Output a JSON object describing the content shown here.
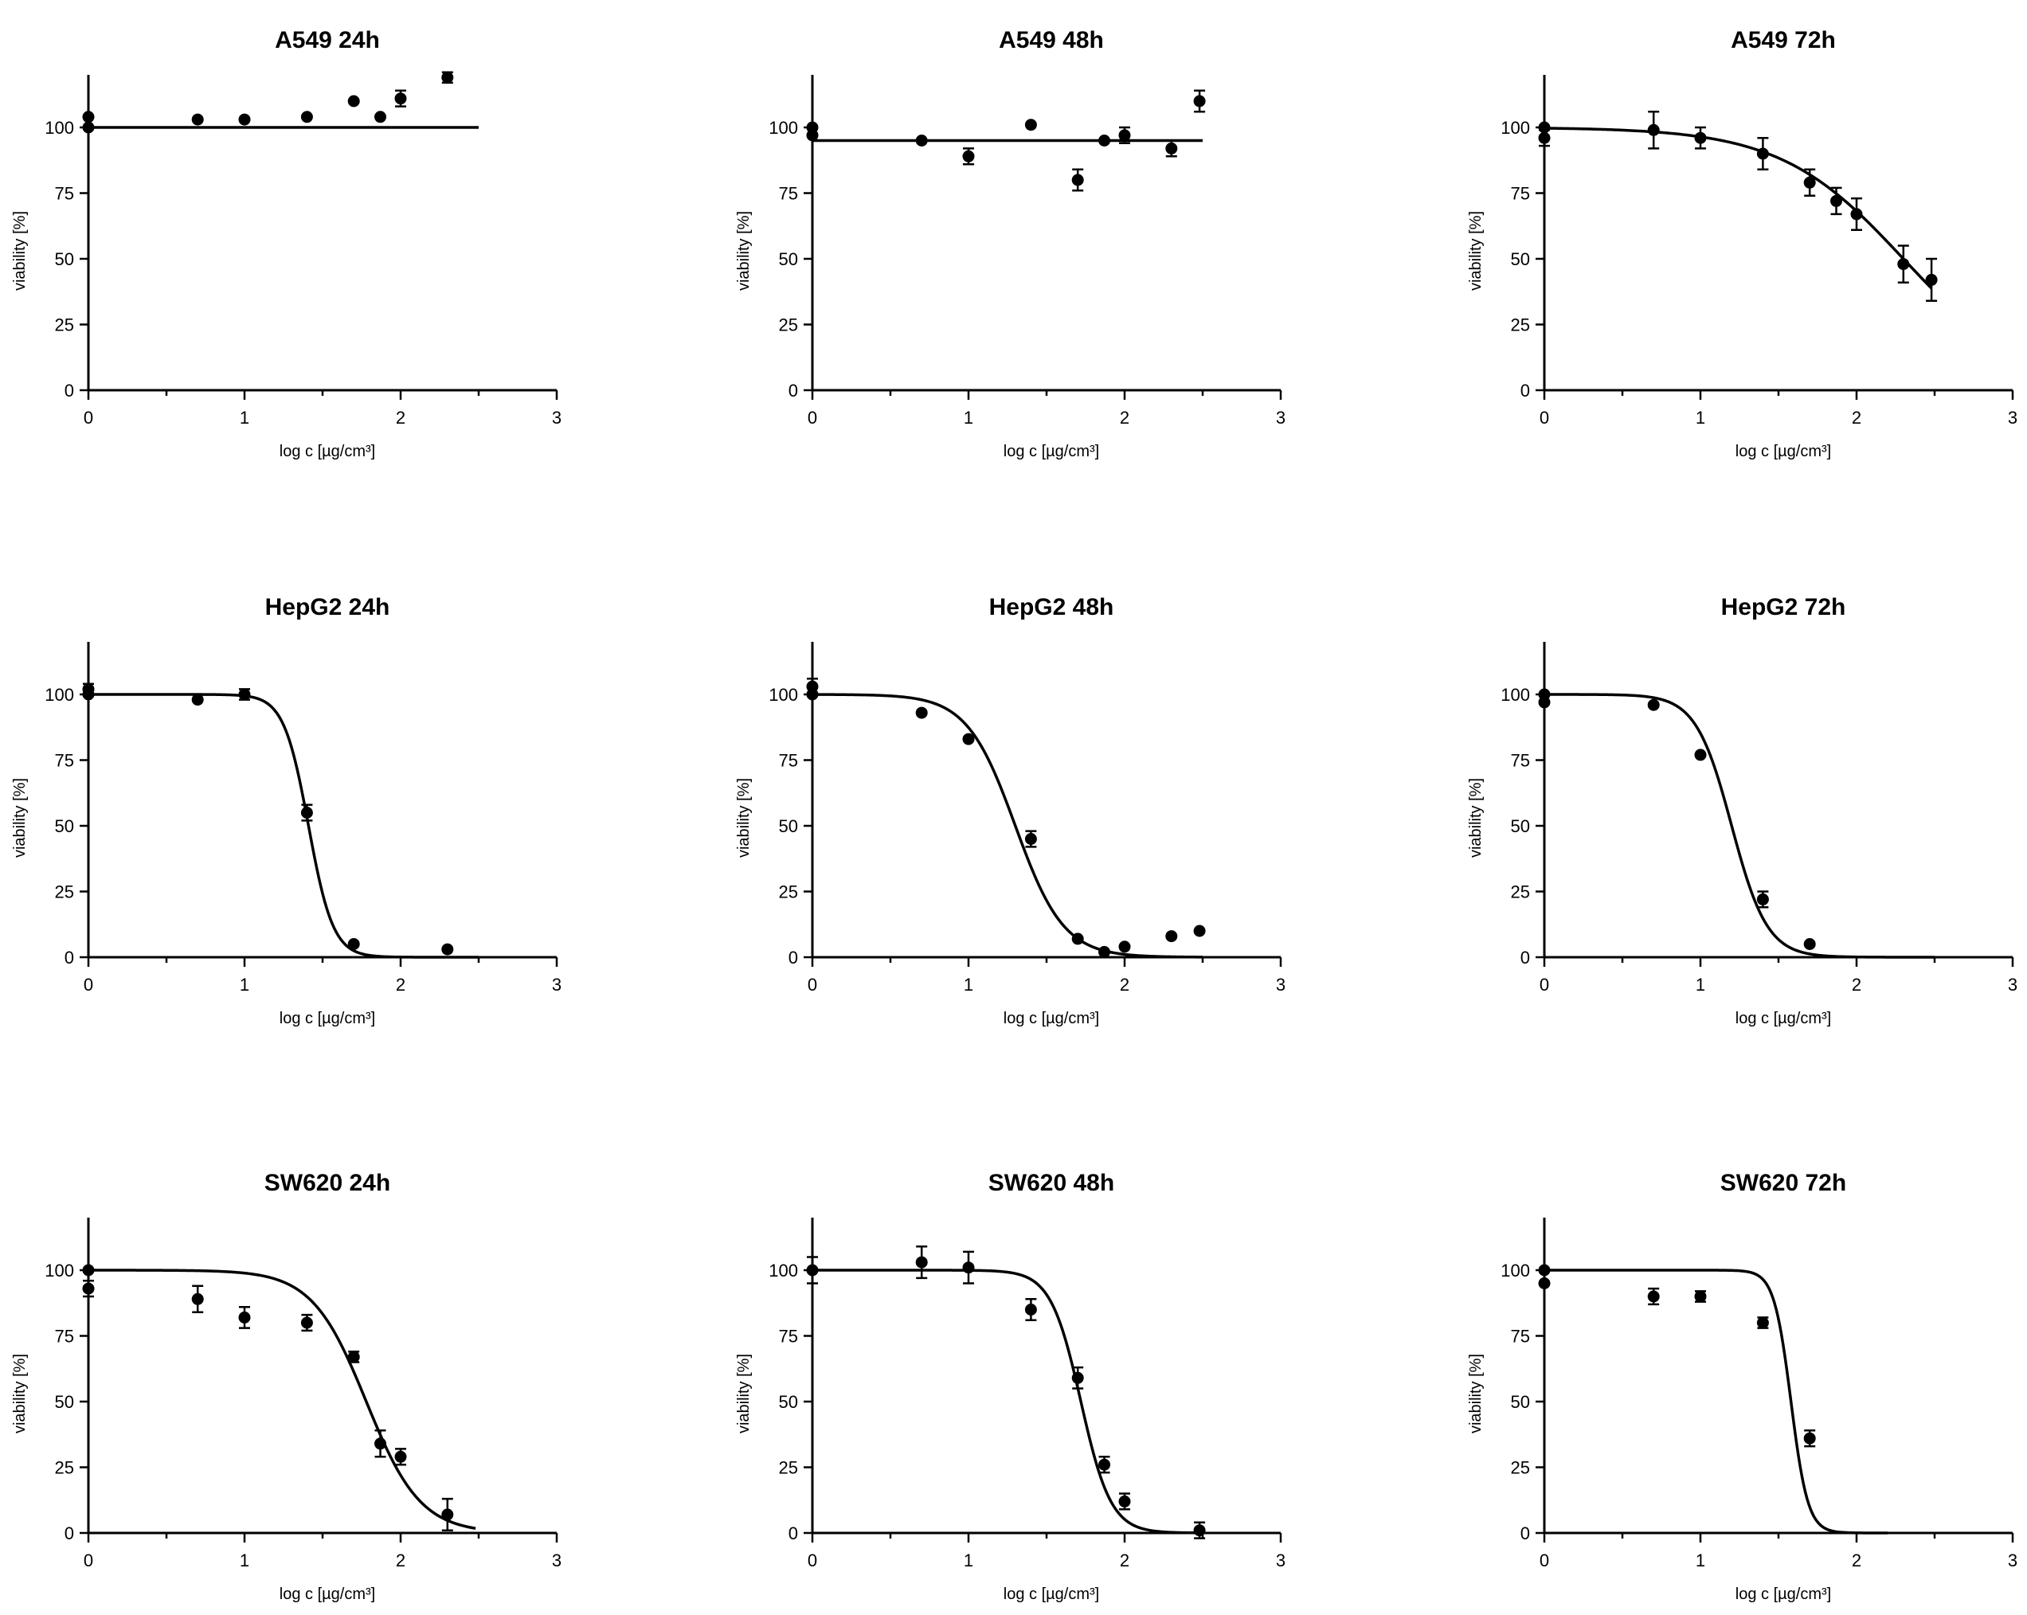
{
  "figure": {
    "background": "#ffffff",
    "ink": "#000000"
  },
  "chart_data": [
    {
      "type": "scatter",
      "title": "A549 24h",
      "xlabel": "log c [µg/cm³]",
      "ylabel": "viability [%]",
      "xlim": [
        0,
        3
      ],
      "ylim": [
        0,
        120
      ],
      "xticks": [
        "0",
        "1",
        "2",
        "3"
      ],
      "yticks": [
        "0",
        "25",
        "50",
        "75",
        "100"
      ],
      "grid": false,
      "fit": {
        "kind": "constant",
        "value": 100,
        "xrange": [
          0,
          2.5
        ]
      },
      "points": [
        {
          "x": 0,
          "y": 104,
          "err": 1
        },
        {
          "x": 0,
          "y": 100,
          "err": 1
        },
        {
          "x": 0.7,
          "y": 103,
          "err": 1
        },
        {
          "x": 1.0,
          "y": 103,
          "err": 1
        },
        {
          "x": 1.4,
          "y": 104,
          "err": 1
        },
        {
          "x": 1.7,
          "y": 110,
          "err": 1
        },
        {
          "x": 1.87,
          "y": 104,
          "err": 1
        },
        {
          "x": 2.0,
          "y": 111,
          "err": 3
        },
        {
          "x": 2.3,
          "y": 119,
          "err": 2
        }
      ]
    },
    {
      "type": "scatter",
      "title": "A549 48h",
      "xlabel": "log c [µg/cm³]",
      "ylabel": "viability [%]",
      "xlim": [
        0,
        3
      ],
      "ylim": [
        0,
        120
      ],
      "xticks": [
        "0",
        "1",
        "2",
        "3"
      ],
      "yticks": [
        "0",
        "25",
        "50",
        "75",
        "100"
      ],
      "grid": false,
      "fit": {
        "kind": "constant",
        "value": 95,
        "xrange": [
          0,
          2.5
        ]
      },
      "points": [
        {
          "x": 0,
          "y": 100,
          "err": 1
        },
        {
          "x": 0,
          "y": 97,
          "err": 1
        },
        {
          "x": 0.7,
          "y": 95,
          "err": 1
        },
        {
          "x": 1.0,
          "y": 89,
          "err": 3
        },
        {
          "x": 1.4,
          "y": 101,
          "err": 1
        },
        {
          "x": 1.7,
          "y": 80,
          "err": 4
        },
        {
          "x": 1.87,
          "y": 95,
          "err": 1
        },
        {
          "x": 2.0,
          "y": 97,
          "err": 3
        },
        {
          "x": 2.3,
          "y": 92,
          "err": 3
        },
        {
          "x": 2.48,
          "y": 110,
          "err": 4
        }
      ]
    },
    {
      "type": "scatter",
      "title": "A549 72h",
      "xlabel": "log c [µg/cm³]",
      "ylabel": "viability [%]",
      "xlim": [
        0,
        3
      ],
      "ylim": [
        0,
        120
      ],
      "xticks": [
        "0",
        "1",
        "2",
        "3"
      ],
      "yticks": [
        "0",
        "25",
        "50",
        "75",
        "100"
      ],
      "grid": false,
      "fit": {
        "kind": "sigmoid",
        "top": 100,
        "bottom": 0,
        "logEC50": 2.3,
        "hill": 1.1,
        "xrange": [
          0,
          2.48
        ]
      },
      "points": [
        {
          "x": 0,
          "y": 100,
          "err": 1
        },
        {
          "x": 0,
          "y": 96,
          "err": 3
        },
        {
          "x": 0.7,
          "y": 99,
          "err": 7
        },
        {
          "x": 1.0,
          "y": 96,
          "err": 4
        },
        {
          "x": 1.4,
          "y": 90,
          "err": 6
        },
        {
          "x": 1.7,
          "y": 79,
          "err": 5
        },
        {
          "x": 1.87,
          "y": 72,
          "err": 5
        },
        {
          "x": 2.0,
          "y": 67,
          "err": 6
        },
        {
          "x": 2.3,
          "y": 48,
          "err": 7
        },
        {
          "x": 2.48,
          "y": 42,
          "err": 8
        }
      ]
    },
    {
      "type": "scatter",
      "title": "HepG2 24h",
      "xlabel": "log c [µg/cm³]",
      "ylabel": "viability [%]",
      "xlim": [
        0,
        3
      ],
      "ylim": [
        0,
        120
      ],
      "xticks": [
        "0",
        "1",
        "2",
        "3"
      ],
      "yticks": [
        "0",
        "25",
        "50",
        "75",
        "100"
      ],
      "grid": false,
      "fit": {
        "kind": "sigmoid",
        "top": 100,
        "bottom": 0,
        "logEC50": 1.41,
        "hill": 5.5,
        "xrange": [
          0,
          2.5
        ]
      },
      "points": [
        {
          "x": 0,
          "y": 102,
          "err": 2
        },
        {
          "x": 0,
          "y": 100,
          "err": 1
        },
        {
          "x": 0.7,
          "y": 98,
          "err": 1
        },
        {
          "x": 1.0,
          "y": 100,
          "err": 2
        },
        {
          "x": 1.4,
          "y": 55,
          "err": 3
        },
        {
          "x": 1.7,
          "y": 5,
          "err": 1
        },
        {
          "x": 2.3,
          "y": 3,
          "err": 1
        }
      ]
    },
    {
      "type": "scatter",
      "title": "HepG2 48h",
      "xlabel": "log c [µg/cm³]",
      "ylabel": "viability [%]",
      "xlim": [
        0,
        3
      ],
      "ylim": [
        0,
        120
      ],
      "xticks": [
        "0",
        "1",
        "2",
        "3"
      ],
      "yticks": [
        "0",
        "25",
        "50",
        "75",
        "100"
      ],
      "grid": false,
      "fit": {
        "kind": "sigmoid",
        "top": 100,
        "bottom": 0,
        "logEC50": 1.3,
        "hill": 2.8,
        "xrange": [
          0,
          2.5
        ]
      },
      "points": [
        {
          "x": 0,
          "y": 103,
          "err": 3
        },
        {
          "x": 0,
          "y": 100,
          "err": 1
        },
        {
          "x": 0.7,
          "y": 93,
          "err": 1
        },
        {
          "x": 1.0,
          "y": 83,
          "err": 1
        },
        {
          "x": 1.4,
          "y": 45,
          "err": 3
        },
        {
          "x": 1.7,
          "y": 7,
          "err": 1
        },
        {
          "x": 1.87,
          "y": 2,
          "err": 1
        },
        {
          "x": 2.0,
          "y": 4,
          "err": 1
        },
        {
          "x": 2.3,
          "y": 8,
          "err": 1
        },
        {
          "x": 2.48,
          "y": 10,
          "err": 1
        }
      ]
    },
    {
      "type": "scatter",
      "title": "HepG2 72h",
      "xlabel": "log c [µg/cm³]",
      "ylabel": "viability [%]",
      "xlim": [
        0,
        3
      ],
      "ylim": [
        0,
        120
      ],
      "xticks": [
        "0",
        "1",
        "2",
        "3"
      ],
      "yticks": [
        "0",
        "25",
        "50",
        "75",
        "100"
      ],
      "grid": false,
      "fit": {
        "kind": "sigmoid",
        "top": 100,
        "bottom": 0,
        "logEC50": 1.2,
        "hill": 3.8,
        "xrange": [
          0,
          2.5
        ]
      },
      "points": [
        {
          "x": 0,
          "y": 100,
          "err": 1
        },
        {
          "x": 0,
          "y": 97,
          "err": 1
        },
        {
          "x": 0.7,
          "y": 96,
          "err": 1
        },
        {
          "x": 1.0,
          "y": 77,
          "err": 1
        },
        {
          "x": 1.4,
          "y": 22,
          "err": 3
        },
        {
          "x": 1.7,
          "y": 5,
          "err": 1
        }
      ]
    },
    {
      "type": "scatter",
      "title": "SW620 24h",
      "xlabel": "log c [µg/cm³]",
      "ylabel": "viability [%]",
      "xlim": [
        0,
        3
      ],
      "ylim": [
        0,
        120
      ],
      "xticks": [
        "0",
        "1",
        "2",
        "3"
      ],
      "yticks": [
        "0",
        "25",
        "50",
        "75",
        "100"
      ],
      "grid": false,
      "fit": {
        "kind": "sigmoid",
        "top": 100,
        "bottom": 0,
        "logEC50": 1.78,
        "hill": 2.5,
        "xrange": [
          0,
          2.48
        ]
      },
      "points": [
        {
          "x": 0,
          "y": 100,
          "err": 1
        },
        {
          "x": 0,
          "y": 93,
          "err": 3
        },
        {
          "x": 0.7,
          "y": 89,
          "err": 5
        },
        {
          "x": 1.0,
          "y": 82,
          "err": 4
        },
        {
          "x": 1.4,
          "y": 80,
          "err": 3
        },
        {
          "x": 1.7,
          "y": 67,
          "err": 2
        },
        {
          "x": 1.87,
          "y": 34,
          "err": 5
        },
        {
          "x": 2.0,
          "y": 29,
          "err": 3
        },
        {
          "x": 2.3,
          "y": 7,
          "err": 6
        }
      ]
    },
    {
      "type": "scatter",
      "title": "SW620 48h",
      "xlabel": "log c [µg/cm³]",
      "ylabel": "viability [%]",
      "xlim": [
        0,
        3
      ],
      "ylim": [
        0,
        120
      ],
      "xticks": [
        "0",
        "1",
        "2",
        "3"
      ],
      "yticks": [
        "0",
        "25",
        "50",
        "75",
        "100"
      ],
      "grid": false,
      "fit": {
        "kind": "sigmoid",
        "top": 100,
        "bottom": 0,
        "logEC50": 1.72,
        "hill": 4.5,
        "xrange": [
          0,
          2.5
        ]
      },
      "points": [
        {
          "x": 0,
          "y": 100,
          "err": 5
        },
        {
          "x": 0.7,
          "y": 103,
          "err": 6
        },
        {
          "x": 1.0,
          "y": 101,
          "err": 6
        },
        {
          "x": 1.4,
          "y": 85,
          "err": 4
        },
        {
          "x": 1.7,
          "y": 59,
          "err": 4
        },
        {
          "x": 1.87,
          "y": 26,
          "err": 3
        },
        {
          "x": 2.0,
          "y": 12,
          "err": 3
        },
        {
          "x": 2.48,
          "y": 1,
          "err": 3
        }
      ]
    },
    {
      "type": "scatter",
      "title": "SW620 72h",
      "xlabel": "log c [µg/cm³]",
      "ylabel": "viability [%]",
      "xlim": [
        0,
        3
      ],
      "ylim": [
        0,
        120
      ],
      "xticks": [
        "0",
        "1",
        "2",
        "3"
      ],
      "yticks": [
        "0",
        "25",
        "50",
        "75",
        "100"
      ],
      "grid": false,
      "fit": {
        "kind": "sigmoid",
        "top": 100,
        "bottom": 0,
        "logEC50": 1.58,
        "hill": 8,
        "xrange": [
          0,
          2.2
        ]
      },
      "points": [
        {
          "x": 0,
          "y": 100,
          "err": 1
        },
        {
          "x": 0,
          "y": 95,
          "err": 1
        },
        {
          "x": 0.7,
          "y": 90,
          "err": 3
        },
        {
          "x": 1.0,
          "y": 90,
          "err": 2
        },
        {
          "x": 1.4,
          "y": 80,
          "err": 2
        },
        {
          "x": 1.7,
          "y": 36,
          "err": 3
        }
      ]
    }
  ]
}
